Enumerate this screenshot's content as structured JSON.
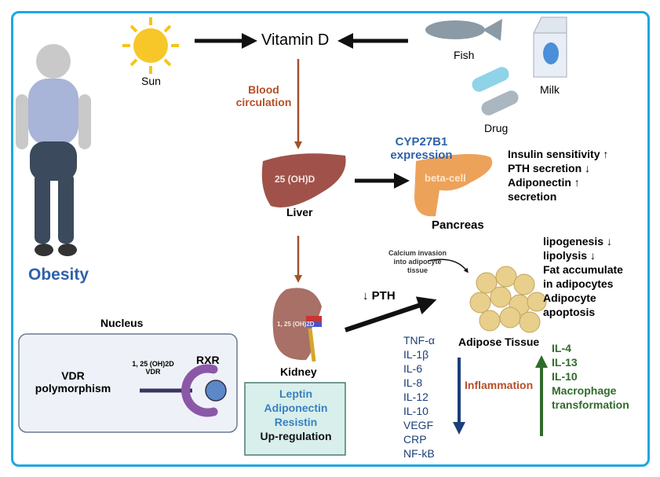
{
  "labels": {
    "sun": "Sun",
    "vitamin_d": "Vitamin D",
    "fish": "Fish",
    "milk": "Milk",
    "drug": "Drug",
    "blood_circulation": [
      "Blood",
      "circulation"
    ],
    "obesity": "Obesity",
    "liver_inner": "25 (OH)D",
    "liver": "Liver",
    "cyp": [
      "CYP27B1",
      "expression"
    ],
    "beta_cell": "beta-cell",
    "pancreas": "Pancreas",
    "pancreas_effects": [
      "Insulin sensitivity ↑",
      "PTH secretion ↓",
      "Adiponectin ↑",
      "secretion"
    ],
    "calcium": [
      "Calcium invasion",
      "into adipocyte",
      "tissue"
    ],
    "adipose_effects": [
      "lipogenesis ↓",
      "lipolysis ↓",
      "Fat accumulate",
      "in adipocytes",
      "Adipocyte",
      "apoptosis"
    ],
    "pth": "↓ PTH",
    "kidney_inner": "1, 25 (OH)2D",
    "kidney": "Kidney",
    "adipose": "Adipose Tissue",
    "nucleus": "Nucleus",
    "vdr": [
      "VDR",
      "polymorphism"
    ],
    "complex": [
      "1, 25 (OH)2D",
      "VDR"
    ],
    "rxr": "RXR",
    "kidney_box": [
      "Leptin",
      "Adiponectin",
      "Resistin"
    ],
    "upregulation": "Up-regulation",
    "pro_inflammatory": [
      "TNF-α",
      "IL-1β",
      "IL-6",
      "IL-8",
      "IL-12",
      "IL-10",
      "VEGF",
      "CRP",
      "NF-kB"
    ],
    "inflammation": "Inflammation",
    "anti_inflammatory": [
      "IL-4",
      "IL-13",
      "IL-10",
      "Macrophage",
      "transformation"
    ]
  },
  "colors": {
    "frame": "#1ea7e1",
    "blue_text": "#2f62a8",
    "navy_text": "#1b3f78",
    "red_text": "#b5502a",
    "green_text": "#2f6b2a",
    "brown_arrow": "#a0522d"
  }
}
